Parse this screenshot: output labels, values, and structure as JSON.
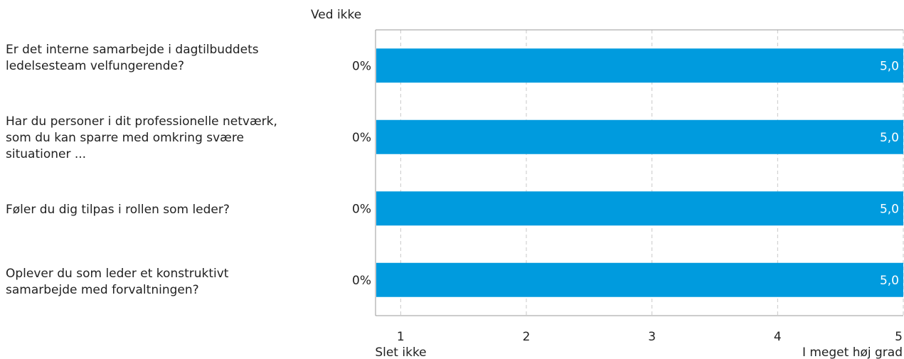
{
  "header": {
    "ved_ikke": "Ved ikke"
  },
  "questions": [
    "Er det interne samarbejde i dagtilbuddets ledelsesteam velfungerende?",
    "Har du personer i dit professionelle netværk, som du kan sparre med omkring svære situationer ...",
    "Føler du dig tilpas i rollen som leder?",
    "Oplever du som leder et konstruktivt samarbejde med forvaltningen?"
  ],
  "chart_data": {
    "type": "bar",
    "orientation": "horizontal",
    "categories": [
      "Er det interne samarbejde i dagtilbuddets ledelsesteam velfungerende?",
      "Har du personer i dit professionelle netværk, som du kan sparre med omkring svære situationer ...",
      "Føler du dig tilpas i rollen som leder?",
      "Oplever du som leder et konstruktivt samarbejde med forvaltningen?"
    ],
    "values": [
      5.0,
      5.0,
      5.0,
      5.0
    ],
    "value_labels": [
      "5,0",
      "5,0",
      "5,0",
      "5,0"
    ],
    "ved_ikke_percent": [
      "0%",
      "0%",
      "0%",
      "0%"
    ],
    "xlim": [
      0.8,
      5
    ],
    "xticks": [
      "1",
      "2",
      "3",
      "4",
      "5"
    ],
    "xtick_values": [
      1,
      2,
      3,
      4,
      5
    ],
    "x_min_label": "Slet ikke",
    "x_max_label": "I meget høj grad",
    "grid": true,
    "bar_color": "#009bde"
  }
}
